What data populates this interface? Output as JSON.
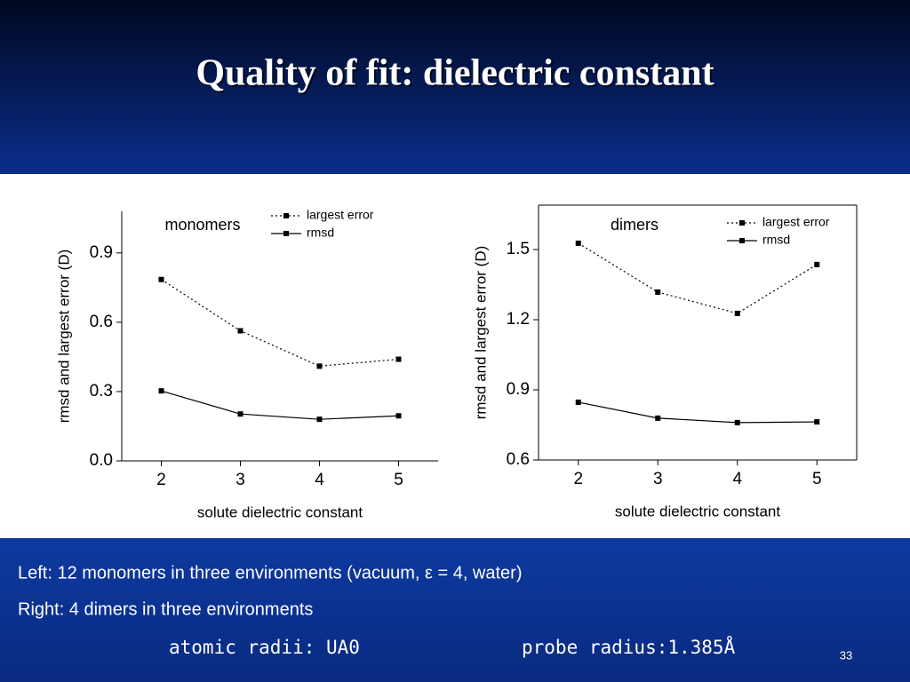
{
  "title": "Quality of fit: dielectric constant",
  "notes": [
    "Left: 12 monomers in three environments (vacuum, ε = 4, water)",
    "Right: 4 dimers in three environments"
  ],
  "footer": {
    "left": "atomic radii: UA0",
    "right": "probe radius:1.385Å"
  },
  "page_number": "33",
  "chart_data": [
    {
      "type": "line",
      "annotation": "monomers",
      "xlabel": "solute dielectric constant",
      "ylabel": "rmsd and largest error (D)",
      "x": [
        2,
        3,
        4,
        5
      ],
      "xlim": [
        1.5,
        5.5
      ],
      "xticks": [
        2,
        3,
        4,
        5
      ],
      "ylim": [
        0,
        1.08
      ],
      "yticks": [
        {
          "value": 0,
          "label": "0.0"
        },
        0.3,
        0.6,
        0.9
      ],
      "legend": "upper right",
      "series": [
        {
          "name": "largest error",
          "color": "#000000",
          "dash": "dotted",
          "values": [
            0.785,
            0.563,
            0.41,
            0.44
          ]
        },
        {
          "name": "rmsd",
          "color": "#000000",
          "dash": "solid",
          "values": [
            0.303,
            0.203,
            0.18,
            0.195
          ]
        }
      ]
    },
    {
      "type": "line",
      "annotation": "dimers",
      "xlabel": "solute dielectric constant",
      "ylabel": "rmsd and largest error (D)",
      "x": [
        2,
        3,
        4,
        5
      ],
      "xlim": [
        1.5,
        5.5
      ],
      "xticks": [
        2,
        3,
        4,
        5
      ],
      "ylim": [
        0.6,
        1.69
      ],
      "yticks": [
        0.6,
        0.9,
        1.2,
        1.5
      ],
      "legend": "upper right",
      "series": [
        {
          "name": "largest error",
          "color": "#000000",
          "dash": "dotted",
          "values": [
            1.527,
            1.318,
            1.227,
            1.436
          ]
        },
        {
          "name": "rmsd",
          "color": "#000000",
          "dash": "solid",
          "values": [
            0.847,
            0.779,
            0.76,
            0.763
          ]
        }
      ]
    }
  ]
}
